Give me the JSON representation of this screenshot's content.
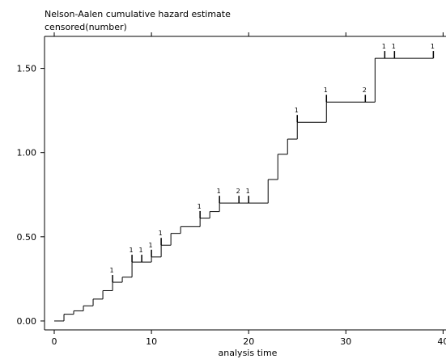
{
  "chart_data": {
    "type": "step",
    "title": "Nelson-Aalen cumulative hazard estimate",
    "subtitle": "censored(number)",
    "x_label": "analysis time",
    "color": "#000000",
    "x": [
      0,
      1,
      2,
      3,
      4,
      5,
      6,
      7,
      8,
      10,
      11,
      12,
      13,
      15,
      16,
      17,
      22,
      23,
      24,
      25,
      28,
      33,
      39
    ],
    "values": [
      0,
      0.04,
      0.06,
      0.09,
      0.13,
      0.18,
      0.23,
      0.26,
      0.35,
      0.38,
      0.45,
      0.52,
      0.56,
      0.61,
      0.65,
      0.7,
      0.84,
      0.99,
      1.08,
      1.18,
      1.3,
      1.56,
      1.56
    ],
    "censored": {
      "times": [
        6,
        8,
        9,
        10,
        11,
        15,
        17,
        19,
        20,
        25,
        28,
        32,
        34,
        35,
        39
      ],
      "counts": [
        1,
        1,
        1,
        1,
        1,
        1,
        1,
        2,
        1,
        1,
        1,
        2,
        1,
        1,
        1
      ]
    },
    "xlim": [
      -1,
      40.3
    ],
    "ylim": [
      -0.053,
      1.69
    ],
    "xticks": [
      0,
      10,
      20,
      30,
      40
    ],
    "yticks": [
      {
        "value": 0,
        "label": "0.00"
      },
      {
        "value": 0.5,
        "label": "0.50"
      },
      {
        "value": 1,
        "label": "1.00"
      },
      {
        "value": 1.5,
        "label": "1.50"
      }
    ]
  }
}
